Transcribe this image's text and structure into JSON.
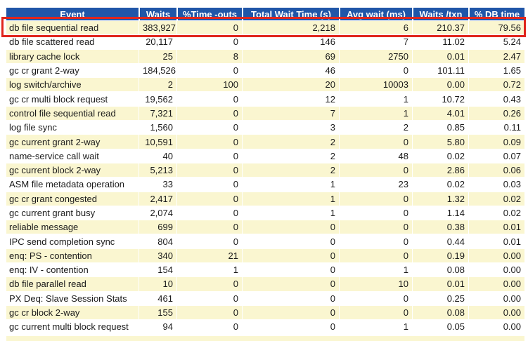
{
  "colors": {
    "header_bg": "#2056a8",
    "header_text": "#ffffff",
    "row_alt_bg": "#faf6d0",
    "row_bg": "#ffffff",
    "body_text": "#1a1a1a",
    "highlight_border": "#e0251c"
  },
  "table": {
    "columns": [
      "Event",
      "Waits",
      "%Time -outs",
      "Total Wait Time (s)",
      "Avg wait (ms)",
      "Waits /txn",
      "% DB time"
    ],
    "rows": [
      [
        "db file sequential read",
        "383,927",
        "0",
        "2,218",
        "6",
        "210.37",
        "79.56"
      ],
      [
        "db file scattered read",
        "20,117",
        "0",
        "146",
        "7",
        "11.02",
        "5.24"
      ],
      [
        "library cache lock",
        "25",
        "8",
        "69",
        "2750",
        "0.01",
        "2.47"
      ],
      [
        "gc cr grant 2-way",
        "184,526",
        "0",
        "46",
        "0",
        "101.11",
        "1.65"
      ],
      [
        "log switch/archive",
        "2",
        "100",
        "20",
        "10003",
        "0.00",
        "0.72"
      ],
      [
        "gc cr multi block request",
        "19,562",
        "0",
        "12",
        "1",
        "10.72",
        "0.43"
      ],
      [
        "control file sequential read",
        "7,321",
        "0",
        "7",
        "1",
        "4.01",
        "0.26"
      ],
      [
        "log file sync",
        "1,560",
        "0",
        "3",
        "2",
        "0.85",
        "0.11"
      ],
      [
        "gc current grant 2-way",
        "10,591",
        "0",
        "2",
        "0",
        "5.80",
        "0.09"
      ],
      [
        "name-service call wait",
        "40",
        "0",
        "2",
        "48",
        "0.02",
        "0.07"
      ],
      [
        "gc current block 2-way",
        "5,213",
        "0",
        "2",
        "0",
        "2.86",
        "0.06"
      ],
      [
        "ASM file metadata operation",
        "33",
        "0",
        "1",
        "23",
        "0.02",
        "0.03"
      ],
      [
        "gc cr grant congested",
        "2,417",
        "0",
        "1",
        "0",
        "1.32",
        "0.02"
      ],
      [
        "gc current grant busy",
        "2,074",
        "0",
        "1",
        "0",
        "1.14",
        "0.02"
      ],
      [
        "reliable message",
        "699",
        "0",
        "0",
        "0",
        "0.38",
        "0.01"
      ],
      [
        "IPC send completion sync",
        "804",
        "0",
        "0",
        "0",
        "0.44",
        "0.01"
      ],
      [
        "enq: PS - contention",
        "340",
        "21",
        "0",
        "0",
        "0.19",
        "0.00"
      ],
      [
        "enq: IV - contention",
        "154",
        "1",
        "0",
        "1",
        "0.08",
        "0.00"
      ],
      [
        "db file parallel read",
        "10",
        "0",
        "0",
        "10",
        "0.01",
        "0.00"
      ],
      [
        "PX Deq: Slave Session Stats",
        "461",
        "0",
        "0",
        "0",
        "0.25",
        "0.00"
      ],
      [
        "gc cr block 2-way",
        "155",
        "0",
        "0",
        "0",
        "0.08",
        "0.00"
      ],
      [
        "gc current multi block request",
        "94",
        "0",
        "0",
        "1",
        "0.05",
        "0.00"
      ]
    ],
    "highlight": {
      "row_index": 0,
      "row_event": "db file sequential read"
    }
  }
}
